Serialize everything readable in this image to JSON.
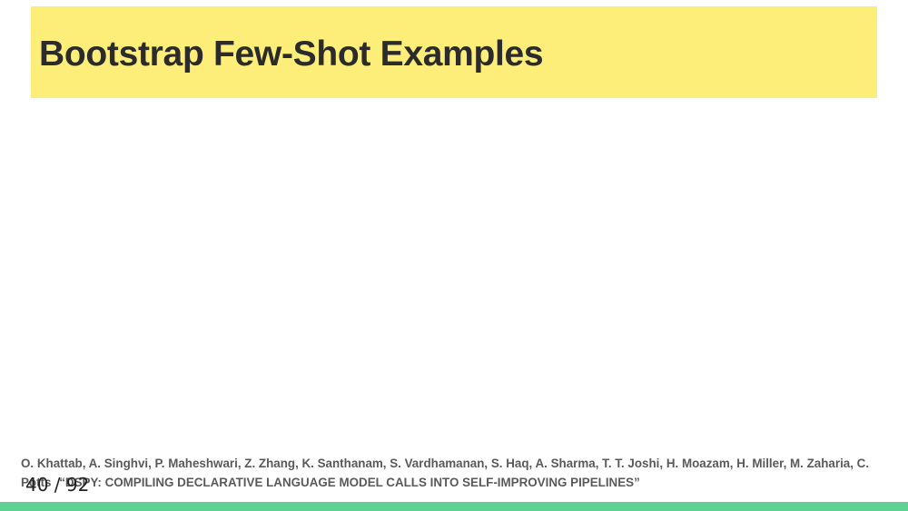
{
  "slide": {
    "title": "Bootstrap Few-Shot Examples"
  },
  "citation": {
    "authors": "O. Khattab, A. Singhvi, P. Maheshwari, Z. Zhang, K. Santhanam, S. Vardhamanan, S. Haq, A. Sharma, T. T. Joshi, H. Moazam, H. Miller, M. Zaharia, C. Potts",
    "paper_title": "“DSPY: COMPILING DECLARATIVE LANGUAGE MODEL CALLS INTO SELF-IMPROVING PIPELINES”"
  },
  "pagination": {
    "label": "40 / 92"
  },
  "colors": {
    "title_banner": "#fcee79",
    "bottom_bar": "#5fd192",
    "title_text": "#2b2b2b",
    "citation_text": "#5a5a5a"
  }
}
